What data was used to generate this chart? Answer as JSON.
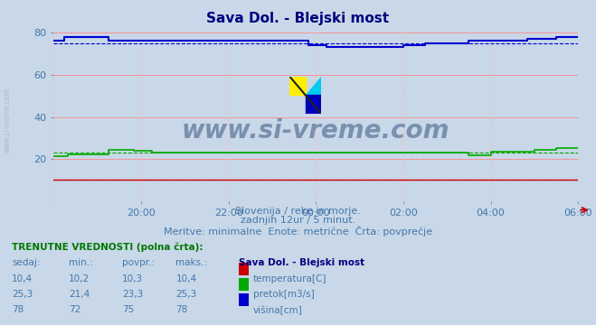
{
  "title": "Sava Dol. - Blejski most",
  "title_color": "#000080",
  "bg_color": "#c8d8e8",
  "plot_bg_color": "#c8d8e8",
  "xlabel": "",
  "ylabel": "",
  "ylim": [
    0,
    80
  ],
  "yticks": [
    20,
    40,
    60,
    80
  ],
  "xtick_positions": [
    2,
    4,
    6,
    8,
    10,
    12
  ],
  "xtick_labels": [
    "20:00",
    "22:00",
    "00:00",
    "02:00",
    "04:00",
    "06:00"
  ],
  "watermark": "www.si-vreme.com",
  "watermark_color": "#1a3a6b",
  "subtitle1": "Slovenija / reke in morje.",
  "subtitle2": "zadnjih 12ur / 5 minut.",
  "subtitle3": "Meritve: minimalne  Enote: metrične  Črta: povprečje",
  "subtitle_color": "#4477aa",
  "legend_title": "Sava Dol. - Blejski most",
  "legend_color": "#000080",
  "table_header": "TRENUTNE VREDNOSTI (polna črta):",
  "table_header_color": "#007700",
  "table_col_headers": [
    "sedaj:",
    "min.:",
    "povpr.:",
    "maks.:"
  ],
  "table_data": [
    {
      "sedaj": "10,4",
      "min": "10,2",
      "povpr": "10,3",
      "maks": "10,4",
      "color": "#cc0000",
      "label": "temperatura[C]"
    },
    {
      "sedaj": "25,3",
      "min": "21,4",
      "povpr": "23,3",
      "maks": "25,3",
      "color": "#00aa00",
      "label": "pretok[m3/s]"
    },
    {
      "sedaj": "78",
      "min": "72",
      "povpr": "75",
      "maks": "78",
      "color": "#0000cc",
      "label": "višina[cm]"
    }
  ],
  "temp_color": "#cc0000",
  "pretok_color": "#00aa00",
  "visina_color": "#0000cc",
  "avg_temp": 10.3,
  "avg_pretok": 23.3,
  "avg_visina": 75,
  "n_points": 145,
  "left_label": "www.si-vreme.com",
  "left_label_color": "#aabbcc"
}
